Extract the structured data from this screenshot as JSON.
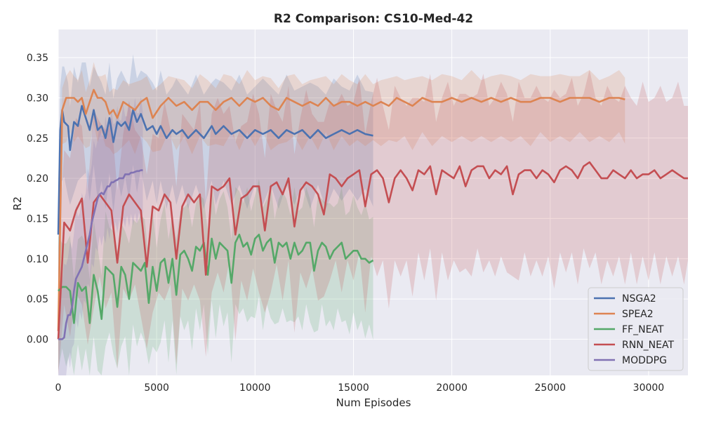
{
  "chart_data": {
    "type": "line",
    "title": "R2 Comparison: CS10-Med-42",
    "xlabel": "Num Episodes",
    "ylabel": "R2",
    "xlim": [
      0,
      32000
    ],
    "ylim": [
      -0.045,
      0.385
    ],
    "xticks": [
      0,
      5000,
      10000,
      15000,
      20000,
      25000,
      30000
    ],
    "yticks": [
      0.0,
      0.05,
      0.1,
      0.15,
      0.2,
      0.25,
      0.3,
      0.35
    ],
    "grid": true,
    "legend_position": "lower-right",
    "background": "#eaeaf2",
    "series": [
      {
        "name": "NSGA2",
        "color": "#4c72b0",
        "x": [
          0,
          100,
          200,
          300,
          500,
          600,
          800,
          1000,
          1200,
          1400,
          1600,
          1800,
          2000,
          2200,
          2400,
          2600,
          2800,
          3000,
          3200,
          3400,
          3600,
          3800,
          4000,
          4200,
          4500,
          4800,
          5000,
          5200,
          5500,
          5800,
          6000,
          6300,
          6600,
          7000,
          7400,
          7800,
          8000,
          8400,
          8800,
          9200,
          9600,
          10000,
          10400,
          10800,
          11200,
          11600,
          12000,
          12400,
          12800,
          13200,
          13600,
          14000,
          14400,
          14800,
          15200,
          15600,
          16000
        ],
        "y": [
          0.13,
          0.26,
          0.285,
          0.27,
          0.265,
          0.235,
          0.27,
          0.265,
          0.29,
          0.275,
          0.26,
          0.285,
          0.26,
          0.265,
          0.25,
          0.275,
          0.245,
          0.27,
          0.265,
          0.27,
          0.26,
          0.285,
          0.27,
          0.28,
          0.26,
          0.265,
          0.255,
          0.265,
          0.25,
          0.26,
          0.255,
          0.26,
          0.25,
          0.26,
          0.25,
          0.265,
          0.255,
          0.265,
          0.255,
          0.26,
          0.25,
          0.26,
          0.255,
          0.26,
          0.25,
          0.26,
          0.255,
          0.26,
          0.25,
          0.26,
          0.25,
          0.255,
          0.26,
          0.255,
          0.26,
          0.255,
          0.253
        ],
        "band": [
          0.06,
          0.08
        ]
      },
      {
        "name": "SPEA2",
        "color": "#dd8452",
        "x": [
          0,
          200,
          400,
          600,
          800,
          1000,
          1200,
          1400,
          1600,
          1800,
          2000,
          2200,
          2400,
          2600,
          2800,
          3000,
          3300,
          3600,
          3900,
          4200,
          4500,
          4800,
          5200,
          5600,
          6000,
          6400,
          6800,
          7200,
          7600,
          8000,
          8400,
          8800,
          9200,
          9600,
          10000,
          10400,
          10800,
          11200,
          11600,
          12000,
          12400,
          12800,
          13200,
          13600,
          14000,
          14400,
          14800,
          15200,
          15600,
          16000,
          16400,
          16800,
          17200,
          17600,
          18000,
          18500,
          19000,
          19500,
          20000,
          20500,
          21000,
          21500,
          22000,
          22500,
          23000,
          23500,
          24000,
          24500,
          25000,
          25500,
          26000,
          26500,
          27000,
          27500,
          28000,
          28500,
          28800
        ],
        "y": [
          0.01,
          0.285,
          0.3,
          0.3,
          0.3,
          0.295,
          0.3,
          0.28,
          0.295,
          0.31,
          0.3,
          0.3,
          0.295,
          0.28,
          0.285,
          0.275,
          0.295,
          0.29,
          0.285,
          0.295,
          0.3,
          0.275,
          0.29,
          0.3,
          0.29,
          0.295,
          0.285,
          0.295,
          0.295,
          0.285,
          0.295,
          0.3,
          0.29,
          0.3,
          0.295,
          0.3,
          0.29,
          0.285,
          0.3,
          0.295,
          0.29,
          0.295,
          0.29,
          0.3,
          0.29,
          0.295,
          0.295,
          0.29,
          0.295,
          0.29,
          0.295,
          0.29,
          0.3,
          0.295,
          0.29,
          0.3,
          0.295,
          0.295,
          0.3,
          0.295,
          0.3,
          0.295,
          0.3,
          0.295,
          0.3,
          0.295,
          0.295,
          0.3,
          0.3,
          0.295,
          0.3,
          0.3,
          0.3,
          0.295,
          0.3,
          0.3,
          0.298
        ],
        "band": [
          0.03,
          0.05
        ]
      },
      {
        "name": "FF_NEAT",
        "color": "#55a868",
        "x": [
          0,
          200,
          400,
          600,
          800,
          1000,
          1200,
          1400,
          1600,
          1800,
          2000,
          2200,
          2400,
          2600,
          2800,
          3000,
          3200,
          3400,
          3600,
          3800,
          4000,
          4200,
          4400,
          4600,
          4800,
          5000,
          5200,
          5400,
          5600,
          5800,
          6000,
          6200,
          6400,
          6600,
          6800,
          7000,
          7200,
          7400,
          7600,
          7800,
          8000,
          8200,
          8400,
          8600,
          8800,
          9000,
          9200,
          9400,
          9600,
          9800,
          10000,
          10200,
          10400,
          10600,
          10800,
          11000,
          11200,
          11400,
          11600,
          11800,
          12000,
          12200,
          12400,
          12600,
          12800,
          13000,
          13200,
          13400,
          13600,
          13800,
          14000,
          14200,
          14400,
          14600,
          14800,
          15000,
          15200,
          15400,
          15600,
          15800,
          16000
        ],
        "y": [
          0.06,
          0.065,
          0.065,
          0.06,
          0.02,
          0.07,
          0.06,
          0.065,
          0.02,
          0.08,
          0.06,
          0.025,
          0.09,
          0.085,
          0.08,
          0.04,
          0.09,
          0.08,
          0.05,
          0.095,
          0.09,
          0.085,
          0.095,
          0.045,
          0.09,
          0.06,
          0.095,
          0.1,
          0.07,
          0.1,
          0.055,
          0.105,
          0.11,
          0.1,
          0.085,
          0.115,
          0.11,
          0.12,
          0.08,
          0.125,
          0.1,
          0.12,
          0.115,
          0.11,
          0.07,
          0.12,
          0.13,
          0.115,
          0.12,
          0.105,
          0.125,
          0.13,
          0.11,
          0.12,
          0.125,
          0.095,
          0.12,
          0.115,
          0.12,
          0.1,
          0.12,
          0.105,
          0.11,
          0.12,
          0.12,
          0.085,
          0.11,
          0.12,
          0.115,
          0.1,
          0.11,
          0.115,
          0.12,
          0.1,
          0.105,
          0.11,
          0.11,
          0.1,
          0.1,
          0.095,
          0.098
        ],
        "band": [
          0.06,
          0.09
        ]
      },
      {
        "name": "RNN_NEAT",
        "color": "#c44e52",
        "x": [
          0,
          300,
          600,
          900,
          1200,
          1500,
          1800,
          2100,
          2400,
          2700,
          3000,
          3300,
          3600,
          3900,
          4200,
          4500,
          4800,
          5100,
          5400,
          5700,
          6000,
          6300,
          6600,
          6900,
          7200,
          7500,
          7800,
          8100,
          8400,
          8700,
          9000,
          9300,
          9600,
          9900,
          10200,
          10500,
          10800,
          11100,
          11400,
          11700,
          12000,
          12300,
          12600,
          12900,
          13200,
          13500,
          13800,
          14100,
          14400,
          14700,
          15000,
          15300,
          15600,
          15900,
          16200,
          16500,
          16800,
          17100,
          17400,
          17700,
          18000,
          18300,
          18600,
          18900,
          19200,
          19500,
          19800,
          20100,
          20400,
          20700,
          21000,
          21300,
          21600,
          21900,
          22200,
          22500,
          22800,
          23100,
          23400,
          23700,
          24000,
          24300,
          24600,
          24900,
          25200,
          25500,
          25800,
          26100,
          26400,
          26700,
          27000,
          27300,
          27600,
          27900,
          28200,
          28500,
          28800,
          29100,
          29400,
          29700,
          30000,
          30300,
          30600,
          30900,
          31200,
          31500,
          31800,
          32000
        ],
        "y": [
          0.0,
          0.145,
          0.135,
          0.16,
          0.175,
          0.095,
          0.17,
          0.18,
          0.17,
          0.16,
          0.095,
          0.165,
          0.18,
          0.17,
          0.16,
          0.09,
          0.165,
          0.16,
          0.18,
          0.17,
          0.1,
          0.165,
          0.18,
          0.17,
          0.18,
          0.08,
          0.19,
          0.185,
          0.19,
          0.2,
          0.13,
          0.175,
          0.18,
          0.19,
          0.19,
          0.135,
          0.19,
          0.195,
          0.18,
          0.2,
          0.14,
          0.185,
          0.195,
          0.19,
          0.18,
          0.155,
          0.205,
          0.2,
          0.19,
          0.2,
          0.205,
          0.21,
          0.165,
          0.205,
          0.21,
          0.2,
          0.17,
          0.2,
          0.21,
          0.2,
          0.185,
          0.21,
          0.205,
          0.215,
          0.18,
          0.21,
          0.205,
          0.2,
          0.215,
          0.19,
          0.21,
          0.215,
          0.215,
          0.2,
          0.21,
          0.205,
          0.215,
          0.18,
          0.205,
          0.21,
          0.21,
          0.2,
          0.21,
          0.205,
          0.195,
          0.21,
          0.215,
          0.21,
          0.2,
          0.215,
          0.22,
          0.21,
          0.2,
          0.2,
          0.21,
          0.205,
          0.2,
          0.21,
          0.2,
          0.205,
          0.205,
          0.21,
          0.2,
          0.205,
          0.21,
          0.205,
          0.2,
          0.2
        ],
        "band": [
          0.1,
          0.12
        ]
      },
      {
        "name": "MODDPG",
        "color": "#8172b3",
        "x": [
          0,
          100,
          200,
          300,
          400,
          500,
          600,
          700,
          800,
          900,
          1000,
          1100,
          1200,
          1300,
          1400,
          1500,
          1600,
          1700,
          1800,
          1900,
          2000,
          2100,
          2200,
          2300,
          2400,
          2500,
          2600,
          2700,
          2800,
          2900,
          3000,
          3100,
          3200,
          3300,
          3400,
          3500,
          3600,
          3700,
          3800,
          3900,
          4000,
          4100,
          4200,
          4300
        ],
        "y": [
          0.0,
          0.0,
          0.0,
          0.002,
          0.02,
          0.03,
          0.03,
          0.04,
          0.06,
          0.075,
          0.08,
          0.085,
          0.09,
          0.1,
          0.11,
          0.12,
          0.13,
          0.145,
          0.155,
          0.165,
          0.175,
          0.18,
          0.182,
          0.18,
          0.185,
          0.19,
          0.19,
          0.195,
          0.195,
          0.197,
          0.198,
          0.2,
          0.2,
          0.2,
          0.205,
          0.205,
          0.205,
          0.207,
          0.207,
          0.208,
          0.209,
          0.209,
          0.21,
          0.21
        ],
        "band": [
          0.08,
          0.06
        ]
      }
    ]
  }
}
